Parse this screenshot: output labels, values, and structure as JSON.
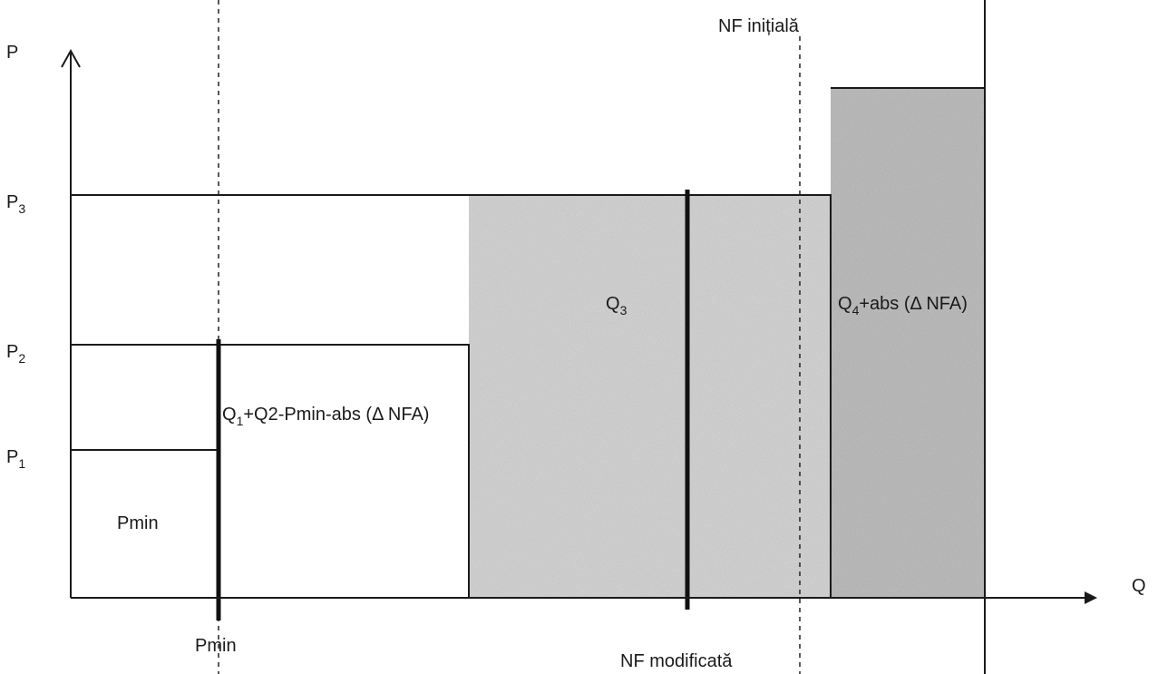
{
  "axes": {
    "y_label": "P",
    "x_label": "Q",
    "y_ticks": [
      {
        "main": "P",
        "sub": "3"
      },
      {
        "main": "P",
        "sub": "2"
      },
      {
        "main": "P",
        "sub": "1"
      }
    ]
  },
  "regions": {
    "pmin": "Pmin",
    "q1q2": {
      "pre": "Q",
      "sub": "1",
      "post": "+Q2-Pmin-abs (Δ NFA)"
    },
    "q3": {
      "pre": "Q",
      "sub": "3"
    },
    "q4": {
      "pre": "Q",
      "sub": "4",
      "post": "+abs (Δ NFA)"
    }
  },
  "markers": {
    "pmin_bottom": "Pmin",
    "nf_initiala": "NF inițială",
    "nf_modificata": "NF modificată"
  },
  "colors": {
    "shade_light": "#d4d4d4",
    "shade_dark": "#bdbdbd",
    "line": "#1a1a1a"
  }
}
